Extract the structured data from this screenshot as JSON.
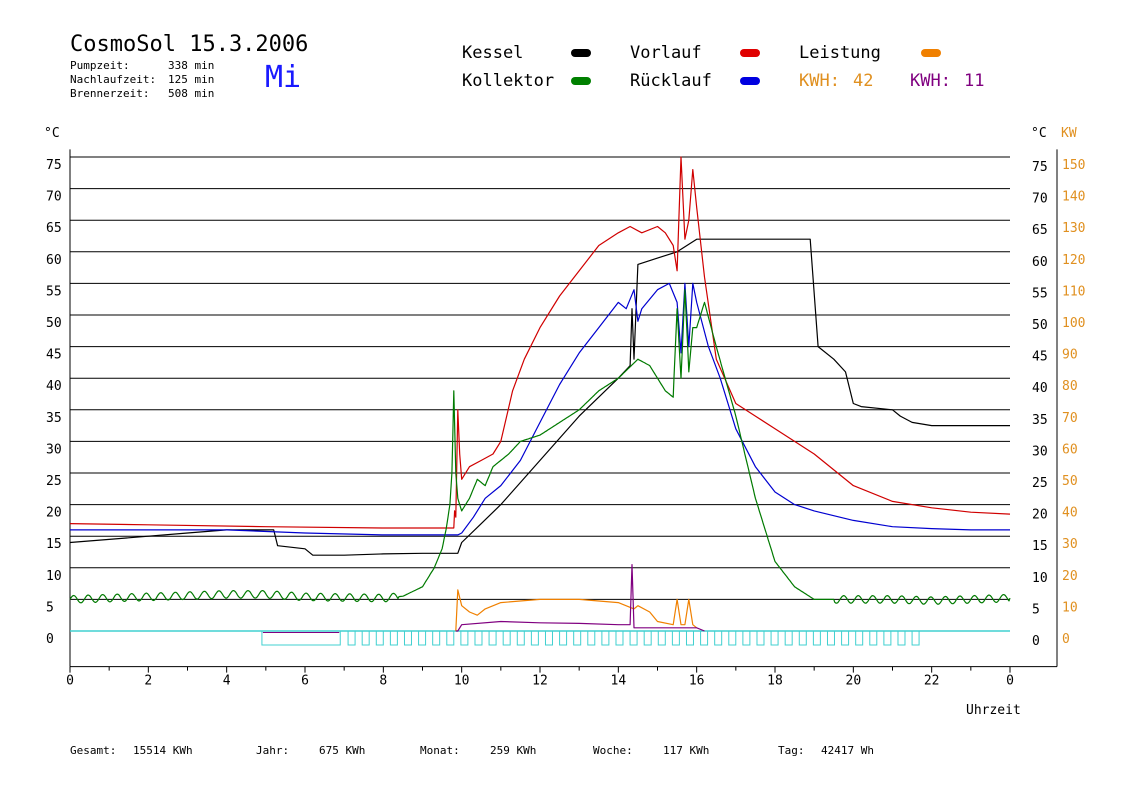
{
  "header": {
    "title": "CosmoSol 15.3.2006",
    "day": "Mi",
    "stats": [
      {
        "label": "Pumpzeit:",
        "value": "338 min"
      },
      {
        "label": "Nachlaufzeit:",
        "value": "125 min"
      },
      {
        "label": "Brennerzeit:",
        "value": "508 min"
      }
    ]
  },
  "legend": {
    "items": [
      {
        "label": "Kessel",
        "color": "#000000"
      },
      {
        "label": "Vorlauf",
        "color": "#e00000"
      },
      {
        "label": "Leistung",
        "color": "#f08000"
      },
      {
        "label": "Kollektor",
        "color": "#008000"
      },
      {
        "label": "Rücklauf",
        "color": "#0000e0"
      }
    ],
    "kwh": [
      {
        "label": "KWH:",
        "value": "42",
        "color": "#e09020"
      },
      {
        "label": "KWH:",
        "value": "11",
        "color": "#800080"
      }
    ]
  },
  "footer": {
    "items": [
      {
        "label": "Gesamt:",
        "value": "15514 KWh"
      },
      {
        "label": "Jahr:",
        "value": "675 KWh"
      },
      {
        "label": "Monat:",
        "value": "259 KWh"
      },
      {
        "label": "Woche:",
        "value": "117 KWh"
      },
      {
        "label": "Tag:",
        "value": "42417 Wh"
      }
    ]
  },
  "chart_data": {
    "type": "line",
    "xlabel": "Uhrzeit",
    "ylabel_left": "°C",
    "ylabel_right_1": "°C",
    "ylabel_right_2": "KW",
    "xlim": [
      0,
      24
    ],
    "ylim": [
      -5,
      80
    ],
    "y2lim": [
      -10,
      160
    ],
    "x_ticks": [
      "0",
      "2",
      "4",
      "6",
      "8",
      "10",
      "12",
      "14",
      "16",
      "18",
      "20",
      "22",
      "0"
    ],
    "y_ticks": [
      0,
      5,
      10,
      15,
      20,
      25,
      30,
      35,
      40,
      45,
      50,
      55,
      60,
      65,
      70,
      75
    ],
    "y2_ticks": [
      0,
      10,
      20,
      30,
      40,
      50,
      60,
      70,
      80,
      90,
      100,
      110,
      120,
      130,
      140,
      150
    ],
    "grid": true,
    "series": [
      {
        "name": "Kessel",
        "color": "#000000",
        "x": [
          0,
          1,
          3,
          4,
          5.2,
          5.3,
          6,
          6.2,
          7,
          8,
          9,
          9.9,
          10,
          10.5,
          11,
          12,
          13,
          14,
          14.3,
          14.35,
          14.4,
          14.5,
          15,
          15.5,
          16,
          17,
          18,
          18.9,
          19.1,
          19.5,
          19.8,
          20,
          20.2,
          21,
          21.2,
          21.5,
          22,
          23,
          24
        ],
        "values": [
          14,
          14.5,
          15.5,
          16,
          16,
          13.5,
          13,
          12,
          12,
          12.2,
          12.3,
          12.3,
          14,
          17,
          20,
          27,
          34,
          40,
          42,
          51,
          43,
          58,
          59,
          60,
          62,
          62,
          62,
          62,
          45,
          43,
          41,
          36,
          35.5,
          35,
          34,
          33,
          32.5,
          32.5,
          32.5
        ]
      },
      {
        "name": "Vorlauf",
        "color": "#d00000",
        "x": [
          0,
          2,
          5,
          8,
          9.8,
          9.82,
          9.85,
          9.9,
          9.95,
          10,
          10.2,
          10.5,
          10.8,
          11,
          11.3,
          11.6,
          12,
          12.5,
          13,
          13.5,
          14,
          14.3,
          14.6,
          15,
          15.2,
          15.4,
          15.5,
          15.6,
          15.7,
          15.8,
          15.9,
          16,
          16.2,
          16.5,
          17,
          17.5,
          18,
          19,
          20,
          21,
          22,
          23,
          24
        ],
        "values": [
          17,
          16.8,
          16.5,
          16.3,
          16.3,
          19,
          18,
          35,
          28,
          24,
          26,
          27,
          28,
          30,
          38,
          43,
          48,
          53,
          57,
          61,
          63,
          64,
          63,
          64,
          63,
          61,
          57,
          75,
          62,
          65,
          73,
          67,
          56,
          43,
          36,
          34,
          32,
          28,
          23,
          20.5,
          19.5,
          18.8,
          18.5
        ]
      },
      {
        "name": "Rücklauf",
        "color": "#0000d0",
        "x": [
          0,
          2,
          4,
          6,
          8,
          9.9,
          10,
          10.3,
          10.6,
          11,
          11.5,
          12,
          12.5,
          13,
          13.5,
          14,
          14.2,
          14.4,
          14.5,
          14.6,
          15,
          15.3,
          15.5,
          15.6,
          15.7,
          15.8,
          15.9,
          16,
          16.3,
          16.6,
          17,
          17.5,
          18,
          18.5,
          19,
          20,
          21,
          22,
          23,
          24
        ],
        "values": [
          16,
          16,
          16,
          15.5,
          15.2,
          15.2,
          15.5,
          18,
          21,
          23,
          27,
          33,
          39,
          44,
          48,
          52,
          51,
          54,
          49,
          51,
          54,
          55,
          52,
          44,
          55,
          45,
          55,
          52,
          45,
          40,
          32,
          26,
          22,
          20,
          19,
          17.5,
          16.5,
          16.2,
          16,
          16
        ]
      },
      {
        "name": "Kollektor",
        "color": "#007a00",
        "x": [
          0,
          1,
          2,
          3,
          4,
          5,
          6,
          7,
          8,
          8.5,
          9,
          9.3,
          9.5,
          9.6,
          9.7,
          9.75,
          9.8,
          9.85,
          9.9,
          10,
          10.2,
          10.4,
          10.6,
          10.8,
          11,
          11.2,
          11.5,
          12,
          12.5,
          13,
          13.5,
          14,
          14.5,
          14.8,
          15,
          15.2,
          15.4,
          15.5,
          15.6,
          15.7,
          15.8,
          15.9,
          16,
          16.2,
          16.5,
          17,
          17.5,
          18,
          18.5,
          19,
          19.5,
          20,
          21,
          22,
          23,
          24
        ],
        "values": [
          5,
          5.2,
          5.4,
          5.6,
          5.8,
          5.8,
          5.4,
          5.3,
          5.2,
          5.5,
          7,
          10,
          13,
          16,
          20,
          25,
          38,
          25,
          21,
          19,
          21,
          24,
          23,
          26,
          27,
          28,
          30,
          31,
          33,
          35,
          38,
          40,
          43,
          42,
          40,
          38,
          37,
          51,
          40,
          54,
          41,
          48,
          48,
          52,
          45,
          34,
          21,
          11,
          7,
          5,
          5,
          5,
          5,
          4.8,
          5,
          5.2
        ]
      },
      {
        "name": "Leistung",
        "color": "#f08000",
        "x": [
          9.85,
          9.9,
          10,
          10.2,
          10.4,
          10.6,
          11,
          12,
          13,
          14,
          14.4,
          14.5,
          14.8,
          15,
          15.4,
          15.5,
          15.6,
          15.7,
          15.8,
          15.9,
          16
        ],
        "values": [
          0,
          6.5,
          4,
          3,
          2.5,
          3.5,
          4.5,
          5,
          5,
          4.5,
          3.5,
          4,
          3,
          1.5,
          1,
          5,
          1,
          1,
          5,
          1,
          0.5
        ]
      },
      {
        "name": "Leistung2",
        "color": "#800080",
        "x": [
          9.85,
          9.9,
          10,
          11,
          12,
          13,
          14,
          14.3,
          14.35,
          14.4,
          14.5,
          15,
          15.5,
          16,
          16.2
        ],
        "values": [
          0,
          0,
          1,
          1.5,
          1.3,
          1.2,
          1,
          1,
          10.5,
          0.5,
          0.5,
          0.5,
          0.5,
          0.5,
          0
        ]
      }
    ],
    "pump_bars": {
      "color": "#40d0d0"
    }
  }
}
